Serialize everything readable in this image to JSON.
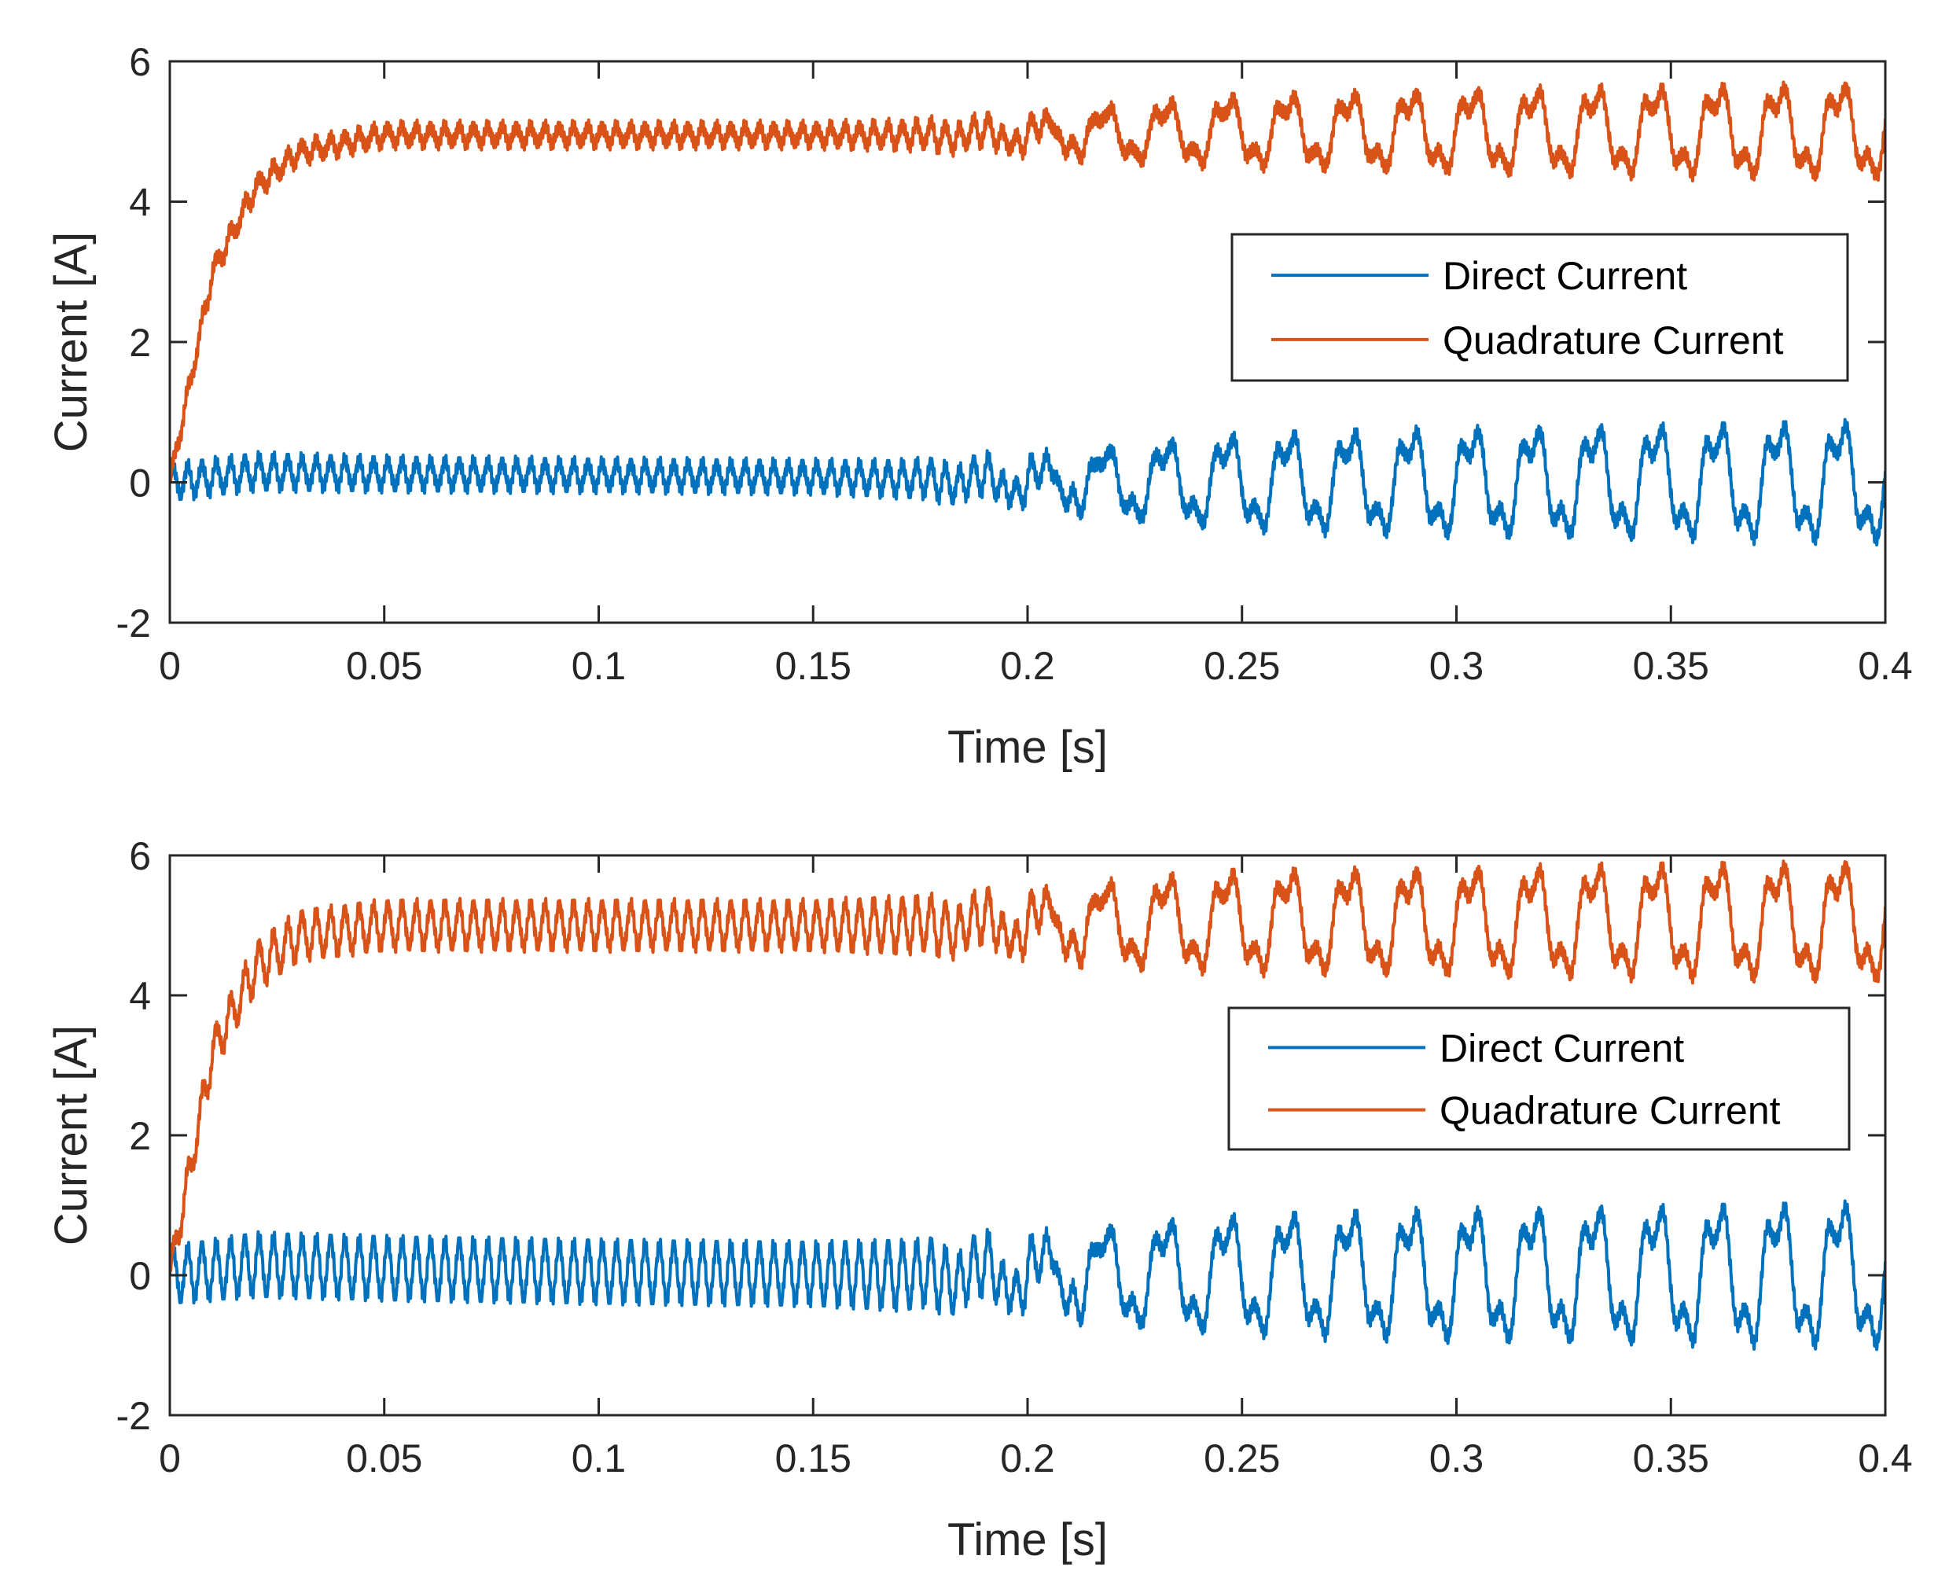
{
  "chart_data": [
    {
      "type": "line",
      "xlabel": "Time [s]",
      "ylabel": "Current [A]",
      "xlim": [
        0,
        0.4
      ],
      "ylim": [
        -2,
        6
      ],
      "xticks": [
        0,
        0.05,
        0.1,
        0.15,
        0.2,
        0.25,
        0.3,
        0.35,
        0.4
      ],
      "xtick_labels": [
        "0",
        "0.05",
        "0.1",
        "0.15",
        "0.2",
        "0.25",
        "0.3",
        "0.35",
        "0.4"
      ],
      "yticks": [
        -2,
        0,
        2,
        4,
        6
      ],
      "ytick_labels": [
        "-2",
        "0",
        "2",
        "4",
        "6"
      ],
      "grid": false,
      "legend_position": "right-middle",
      "series": [
        {
          "name": "Direct Current",
          "color": "#0072BD",
          "legend_label": "Direct Current",
          "x": [
            0,
            0.02,
            0.05,
            0.1,
            0.15,
            0.17,
            0.2,
            0.25,
            0.3,
            0.35,
            0.4
          ],
          "mean": [
            0,
            0.15,
            0.12,
            0.1,
            0.08,
            0.05,
            0.0,
            0.0,
            0.0,
            0.0,
            0.0
          ],
          "amplitude": [
            0.2,
            0.2,
            0.18,
            0.17,
            0.17,
            0.2,
            0.45,
            0.75,
            0.85,
            0.9,
            0.95
          ],
          "oscillation_frequency_hz": 300,
          "low_frequency_hz": 70
        },
        {
          "name": "Quadrature Current",
          "color": "#D95319",
          "legend_label": "Quadrature Current",
          "x": [
            0,
            0.01,
            0.02,
            0.03,
            0.05,
            0.1,
            0.15,
            0.17,
            0.2,
            0.25,
            0.3,
            0.35,
            0.4
          ],
          "mean": [
            0,
            3.0,
            4.2,
            4.7,
            4.95,
            4.95,
            4.95,
            4.95,
            4.95,
            5.0,
            5.0,
            5.0,
            5.0
          ],
          "amplitude": [
            0.1,
            0.12,
            0.12,
            0.12,
            0.12,
            0.12,
            0.12,
            0.15,
            0.35,
            0.55,
            0.65,
            0.7,
            0.75
          ],
          "oscillation_frequency_hz": 300,
          "low_frequency_hz": 70
        }
      ]
    },
    {
      "type": "line",
      "xlabel": "Time [s]",
      "ylabel": "Current [A]",
      "xlim": [
        0,
        0.4
      ],
      "ylim": [
        -2,
        6
      ],
      "xticks": [
        0,
        0.05,
        0.1,
        0.15,
        0.2,
        0.25,
        0.3,
        0.35,
        0.4
      ],
      "xtick_labels": [
        "0",
        "0.05",
        "0.1",
        "0.15",
        "0.2",
        "0.25",
        "0.3",
        "0.35",
        "0.4"
      ],
      "yticks": [
        -2,
        0,
        2,
        4,
        6
      ],
      "ytick_labels": [
        "-2",
        "0",
        "2",
        "4",
        "6"
      ],
      "grid": false,
      "legend_position": "right-middle",
      "series": [
        {
          "name": "Direct Current",
          "color": "#0072BD",
          "legend_label": "Direct Current",
          "x": [
            0,
            0.02,
            0.05,
            0.1,
            0.15,
            0.17,
            0.2,
            0.25,
            0.3,
            0.35,
            0.4
          ],
          "mean": [
            0,
            0.15,
            0.1,
            0.05,
            0.02,
            0.0,
            0.0,
            0.0,
            0.0,
            0.0,
            0.0
          ],
          "amplitude": [
            0.35,
            0.4,
            0.4,
            0.4,
            0.4,
            0.45,
            0.7,
            0.95,
            1.05,
            1.1,
            1.15
          ],
          "oscillation_frequency_hz": 300,
          "low_frequency_hz": 70
        },
        {
          "name": "Quadrature Current",
          "color": "#D95319",
          "legend_label": "Quadrature Current",
          "x": [
            0,
            0.01,
            0.02,
            0.03,
            0.05,
            0.1,
            0.15,
            0.17,
            0.2,
            0.25,
            0.3,
            0.35,
            0.4
          ],
          "mean": [
            0,
            3.2,
            4.4,
            4.85,
            5.0,
            5.0,
            5.0,
            5.0,
            5.0,
            5.05,
            5.05,
            5.05,
            5.05
          ],
          "amplitude": [
            0.2,
            0.25,
            0.3,
            0.3,
            0.3,
            0.3,
            0.3,
            0.35,
            0.6,
            0.8,
            0.85,
            0.9,
            0.95
          ],
          "oscillation_frequency_hz": 300,
          "low_frequency_hz": 70
        }
      ]
    }
  ]
}
